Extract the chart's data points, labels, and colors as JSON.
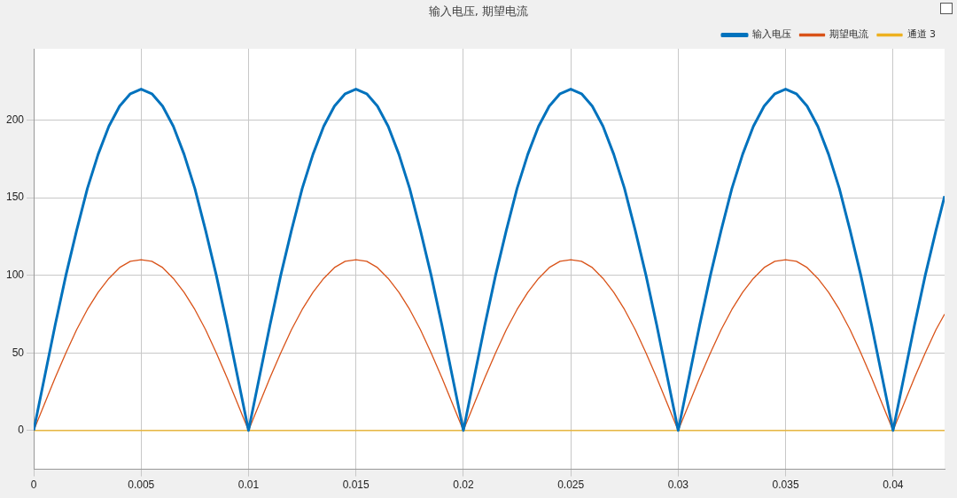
{
  "chart_data": {
    "type": "line",
    "title": "输入电压, 期望电流",
    "x": [
      0,
      0.0005,
      0.001,
      0.0015,
      0.002,
      0.0025,
      0.003,
      0.0035,
      0.004,
      0.0045,
      0.005,
      0.0055,
      0.006,
      0.0065,
      0.007,
      0.0075,
      0.008,
      0.0085,
      0.009,
      0.0095,
      0.01,
      0.0105,
      0.011,
      0.0115,
      0.012,
      0.0125,
      0.013,
      0.0135,
      0.014,
      0.0145,
      0.015,
      0.0155,
      0.016,
      0.0165,
      0.017,
      0.0175,
      0.018,
      0.0185,
      0.019,
      0.0195,
      0.02,
      0.0205,
      0.021,
      0.0215,
      0.022,
      0.0225,
      0.023,
      0.0235,
      0.024,
      0.0245,
      0.025,
      0.0255,
      0.026,
      0.0265,
      0.027,
      0.0275,
      0.028,
      0.0285,
      0.029,
      0.0295,
      0.03,
      0.0305,
      0.031,
      0.0315,
      0.032,
      0.0325,
      0.033,
      0.0335,
      0.034,
      0.0345,
      0.035,
      0.0355,
      0.036,
      0.0365,
      0.037,
      0.0375,
      0.038,
      0.0385,
      0.039,
      0.0395,
      0.04,
      0.0405,
      0.041,
      0.0415,
      0.042,
      0.0424
    ],
    "series": [
      {
        "name": "输入电压",
        "color": "#0072bd",
        "values": [
          0,
          34,
          68,
          100,
          129,
          156,
          178,
          196,
          209,
          217,
          220,
          217,
          209,
          196,
          178,
          156,
          129,
          100,
          68,
          34,
          0,
          34,
          68,
          100,
          129,
          156,
          178,
          196,
          209,
          217,
          220,
          217,
          209,
          196,
          178,
          156,
          129,
          100,
          68,
          34,
          0,
          34,
          68,
          100,
          129,
          156,
          178,
          196,
          209,
          217,
          220,
          217,
          209,
          196,
          178,
          156,
          129,
          100,
          68,
          34,
          0,
          34,
          68,
          100,
          129,
          156,
          178,
          196,
          209,
          217,
          220,
          217,
          209,
          196,
          178,
          156,
          129,
          100,
          68,
          34,
          0,
          34,
          68,
          100,
          129,
          151
        ]
      },
      {
        "name": "期望电流",
        "color": "#d95319",
        "values": [
          0,
          17,
          34,
          50,
          65,
          78,
          89,
          98,
          105,
          109,
          110,
          109,
          105,
          98,
          89,
          78,
          65,
          50,
          34,
          17,
          0,
          17,
          34,
          50,
          65,
          78,
          89,
          98,
          105,
          109,
          110,
          109,
          105,
          98,
          89,
          78,
          65,
          50,
          34,
          17,
          0,
          17,
          34,
          50,
          65,
          78,
          89,
          98,
          105,
          109,
          110,
          109,
          105,
          98,
          89,
          78,
          65,
          50,
          34,
          17,
          0,
          17,
          34,
          50,
          65,
          78,
          89,
          98,
          105,
          109,
          110,
          109,
          105,
          98,
          89,
          78,
          65,
          50,
          34,
          17,
          0,
          17,
          34,
          50,
          65,
          75
        ]
      },
      {
        "name": "通道 3",
        "color": "#edb120",
        "x": [
          0,
          0.0424
        ],
        "values": [
          0,
          0
        ]
      }
    ],
    "xlim": [
      0,
      0.0424
    ],
    "xticks": [
      0,
      0.005,
      0.01,
      0.015,
      0.02,
      0.025,
      0.03,
      0.035,
      0.04
    ],
    "ylim": [
      -25,
      246
    ],
    "yticks": [
      0,
      50,
      100,
      150,
      200
    ],
    "grid": true,
    "legend": "top right",
    "marker": "none",
    "line_style": "solid"
  }
}
